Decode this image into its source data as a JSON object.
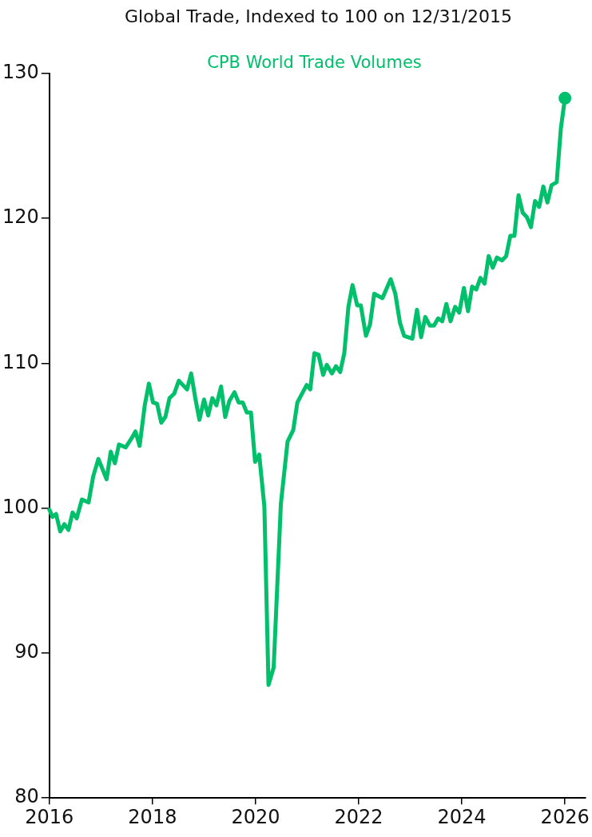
{
  "chart_data": {
    "type": "line",
    "title": "Global Trade, Indexed to 100 on 12/31/2015",
    "legend": "top",
    "grid": false,
    "marker": "none",
    "line_style": "solid",
    "xlim": [
      2016,
      2026.4
    ],
    "xticks": [
      2016,
      2018,
      2020,
      2022,
      2024,
      2026
    ],
    "ylim": [
      80,
      130
    ],
    "yticks": [
      80,
      90,
      100,
      110,
      120,
      130
    ],
    "series": [
      {
        "name": "CPB World Trade Volumes",
        "color": "#00c06b",
        "x": [
          2016.0,
          2016.06,
          2016.13,
          2016.21,
          2016.29,
          2016.37,
          2016.45,
          2016.53,
          2016.63,
          2016.76,
          2016.85,
          2016.95,
          2017.11,
          2017.19,
          2017.27,
          2017.35,
          2017.48,
          2017.59,
          2017.67,
          2017.75,
          2017.85,
          2017.93,
          2018.01,
          2018.09,
          2018.17,
          2018.25,
          2018.33,
          2018.42,
          2018.51,
          2018.67,
          2018.75,
          2018.83,
          2018.91,
          2019.0,
          2019.08,
          2019.16,
          2019.24,
          2019.33,
          2019.41,
          2019.49,
          2019.59,
          2019.67,
          2019.75,
          2019.83,
          2019.91,
          2019.99,
          2020.07,
          2020.17,
          2020.25,
          2020.35,
          2020.49,
          2020.62,
          2020.73,
          2020.81,
          2020.99,
          2021.06,
          2021.14,
          2021.22,
          2021.31,
          2021.38,
          2021.48,
          2021.56,
          2021.64,
          2021.72,
          2021.8,
          2021.88,
          2021.97,
          2022.04,
          2022.14,
          2022.22,
          2022.3,
          2022.46,
          2022.62,
          2022.71,
          2022.8,
          2022.88,
          2023.04,
          2023.13,
          2023.21,
          2023.29,
          2023.38,
          2023.46,
          2023.54,
          2023.62,
          2023.7,
          2023.78,
          2023.87,
          2023.95,
          2024.04,
          2024.12,
          2024.2,
          2024.28,
          2024.36,
          2024.44,
          2024.52,
          2024.6,
          2024.68,
          2024.78,
          2024.86,
          2024.94,
          2025.02,
          2025.1,
          2025.18,
          2025.26,
          2025.34,
          2025.42,
          2025.5,
          2025.58,
          2025.66,
          2025.74,
          2025.84,
          2025.92,
          2026.0
        ],
        "values": [
          99.9,
          99.4,
          99.6,
          98.4,
          98.9,
          98.5,
          99.7,
          99.3,
          100.6,
          100.4,
          102.2,
          103.4,
          102.0,
          103.9,
          103.1,
          104.4,
          104.2,
          104.8,
          105.3,
          104.3,
          107.1,
          108.6,
          107.3,
          107.2,
          105.9,
          106.3,
          107.6,
          107.9,
          108.8,
          108.2,
          109.3,
          107.6,
          106.1,
          107.5,
          106.4,
          107.6,
          107.1,
          108.4,
          106.3,
          107.4,
          108.0,
          107.3,
          107.3,
          106.6,
          106.6,
          103.2,
          103.7,
          100.1,
          87.8,
          89.0,
          100.3,
          104.6,
          105.4,
          107.3,
          108.5,
          108.2,
          110.7,
          110.6,
          109.2,
          109.9,
          109.3,
          109.8,
          109.4,
          110.7,
          113.9,
          115.4,
          114.0,
          114.0,
          111.9,
          112.7,
          114.8,
          114.5,
          115.8,
          114.8,
          112.8,
          111.9,
          111.7,
          113.7,
          111.8,
          113.2,
          112.6,
          112.6,
          113.1,
          112.9,
          114.1,
          112.9,
          113.9,
          113.5,
          115.2,
          113.6,
          115.3,
          115.1,
          115.9,
          115.5,
          117.4,
          116.6,
          117.3,
          117.1,
          117.4,
          118.8,
          118.8,
          121.6,
          120.4,
          120.1,
          119.4,
          121.2,
          120.8,
          122.2,
          121.1,
          122.3,
          122.5,
          126.2,
          128.3
        ]
      },
      {
        "type": "scatter",
        "color": "#00c06b",
        "marker": "circle",
        "x": [
          2026.0
        ],
        "values": [
          128.3
        ]
      }
    ]
  }
}
